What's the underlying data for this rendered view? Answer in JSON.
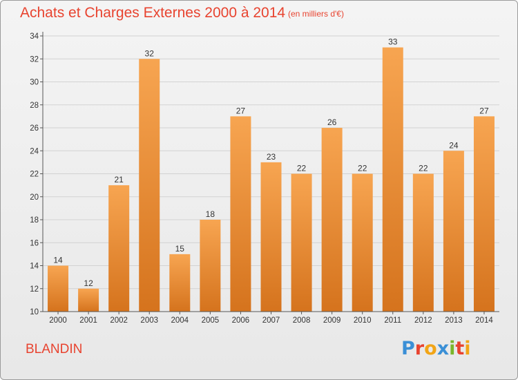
{
  "header": {
    "title": "Achats et Charges Externes 2000 à 2014",
    "subtitle": "(en milliers d'€)"
  },
  "footer": {
    "commune": "BLANDIN",
    "logo": "Proxiti",
    "logo_colors": [
      "#3a8fd6",
      "#e8432f",
      "#f2a516",
      "#3a8fd6",
      "#7bb52a",
      "#e8432f",
      "#f2a516"
    ]
  },
  "colors": {
    "accent": "#e8432f",
    "bar_top": "#f7a551",
    "bar_bottom": "#d5731d"
  },
  "chart_data": {
    "type": "bar",
    "title": "Achats et Charges Externes 2000 à 2014",
    "subtitle": "(en milliers d'€)",
    "categories": [
      "2000",
      "2001",
      "2002",
      "2003",
      "2004",
      "2005",
      "2006",
      "2007",
      "2008",
      "2009",
      "2010",
      "2011",
      "2012",
      "2013",
      "2014"
    ],
    "values": [
      14,
      12,
      21,
      32,
      15,
      18,
      27,
      23,
      22,
      26,
      22,
      33,
      22,
      24,
      27
    ],
    "ylim": [
      10,
      34
    ],
    "yticks": [
      10,
      12,
      14,
      16,
      18,
      20,
      22,
      24,
      26,
      28,
      30,
      32,
      34
    ],
    "grid": true
  }
}
